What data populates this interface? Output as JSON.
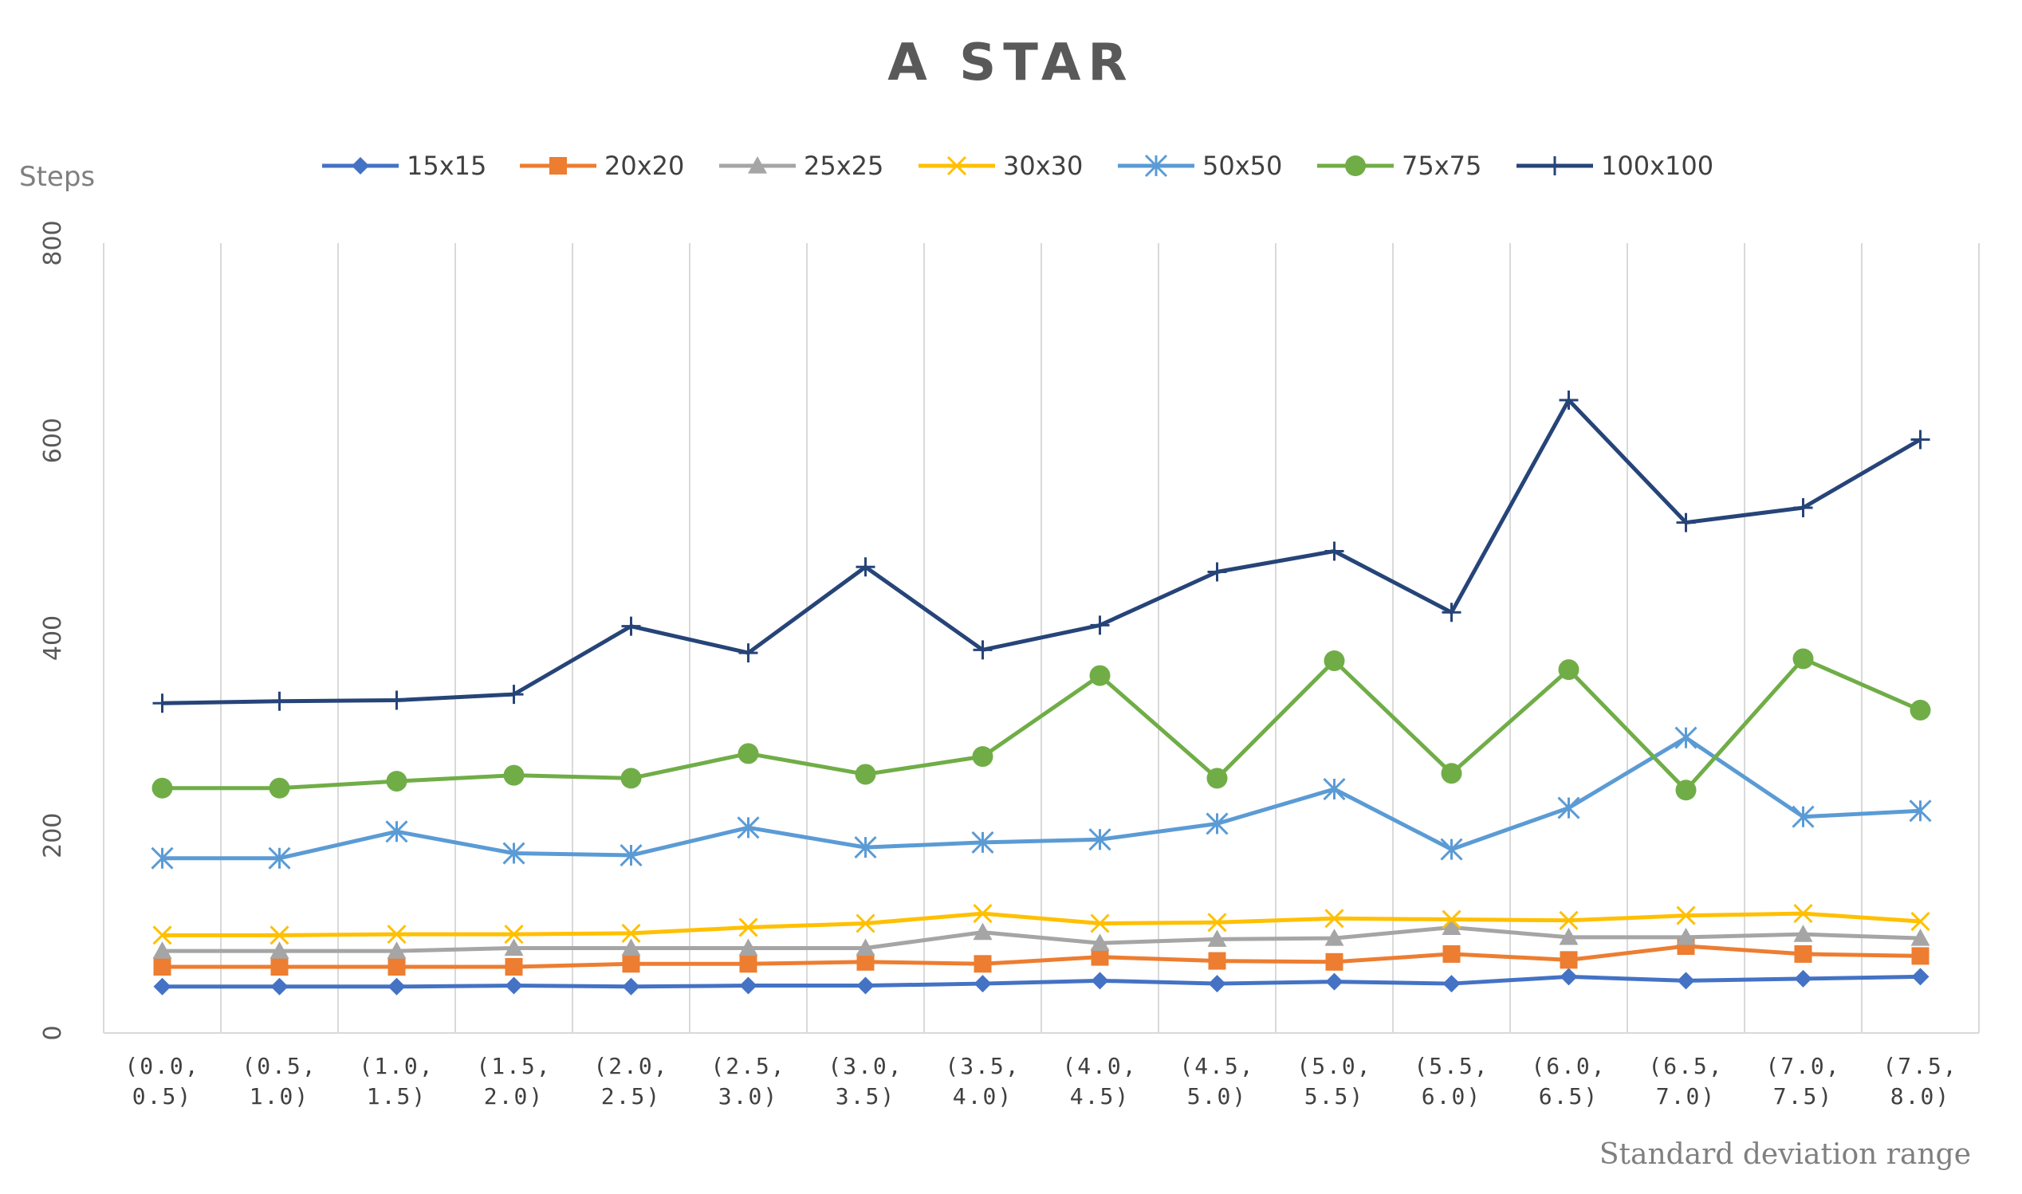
{
  "chart_data": {
    "type": "line",
    "title": "A STAR",
    "ylabel": "Steps",
    "xlabel": "Standard deviation range",
    "ylim": [
      0,
      800
    ],
    "yticks": [
      "0",
      "200",
      "400",
      "600",
      "800"
    ],
    "grid": "vertical",
    "legend": "top",
    "categories": [
      [
        "(0.0,",
        "0.5)"
      ],
      [
        "(0.5,",
        "1.0)"
      ],
      [
        "(1.0,",
        "1.5)"
      ],
      [
        "(1.5,",
        "2.0)"
      ],
      [
        "(2.0,",
        "2.5)"
      ],
      [
        "(2.5,",
        "3.0)"
      ],
      [
        "(3.0,",
        "3.5)"
      ],
      [
        "(3.5,",
        "4.0)"
      ],
      [
        "(4.0,",
        "4.5)"
      ],
      [
        "(4.5,",
        "5.0)"
      ],
      [
        "(5.0,",
        "5.5)"
      ],
      [
        "(5.5,",
        "6.0)"
      ],
      [
        "(6.0,",
        "6.5)"
      ],
      [
        "(6.5,",
        "7.0)"
      ],
      [
        "(7.0,",
        "7.5)"
      ],
      [
        "(7.5,",
        "8.0)"
      ]
    ],
    "series": [
      {
        "name": "15x15",
        "color": "#4472C4",
        "marker": "diamond",
        "values": [
          47,
          47,
          47,
          48,
          47,
          48,
          48,
          50,
          53,
          50,
          52,
          50,
          57,
          53,
          55,
          57
        ]
      },
      {
        "name": "20x20",
        "color": "#ED7D31",
        "marker": "square",
        "values": [
          67,
          67,
          67,
          67,
          70,
          70,
          72,
          70,
          77,
          73,
          72,
          80,
          74,
          88,
          80,
          78
        ]
      },
      {
        "name": "25x25",
        "color": "#A5A5A5",
        "marker": "triangle",
        "values": [
          83,
          83,
          83,
          86,
          86,
          86,
          86,
          102,
          91,
          95,
          96,
          107,
          97,
          97,
          100,
          96
        ]
      },
      {
        "name": "30x30",
        "color": "#FFC000",
        "marker": "x",
        "values": [
          99,
          99,
          100,
          100,
          101,
          107,
          111,
          121,
          111,
          112,
          116,
          115,
          114,
          119,
          121,
          113
        ]
      },
      {
        "name": "50x50",
        "color": "#5B9BD5",
        "marker": "asterisk",
        "values": [
          177,
          177,
          204,
          182,
          180,
          208,
          188,
          193,
          196,
          212,
          247,
          186,
          228,
          299,
          219,
          225
        ]
      },
      {
        "name": "75x75",
        "color": "#70AD47",
        "marker": "circle",
        "values": [
          248,
          248,
          255,
          261,
          258,
          283,
          262,
          280,
          362,
          258,
          377,
          263,
          368,
          246,
          379,
          327
        ]
      },
      {
        "name": "100x100",
        "color": "#264478",
        "marker": "plus",
        "values": [
          334,
          336,
          337,
          343,
          412,
          385,
          472,
          388,
          413,
          467,
          488,
          426,
          641,
          517,
          532,
          601
        ]
      }
    ]
  }
}
